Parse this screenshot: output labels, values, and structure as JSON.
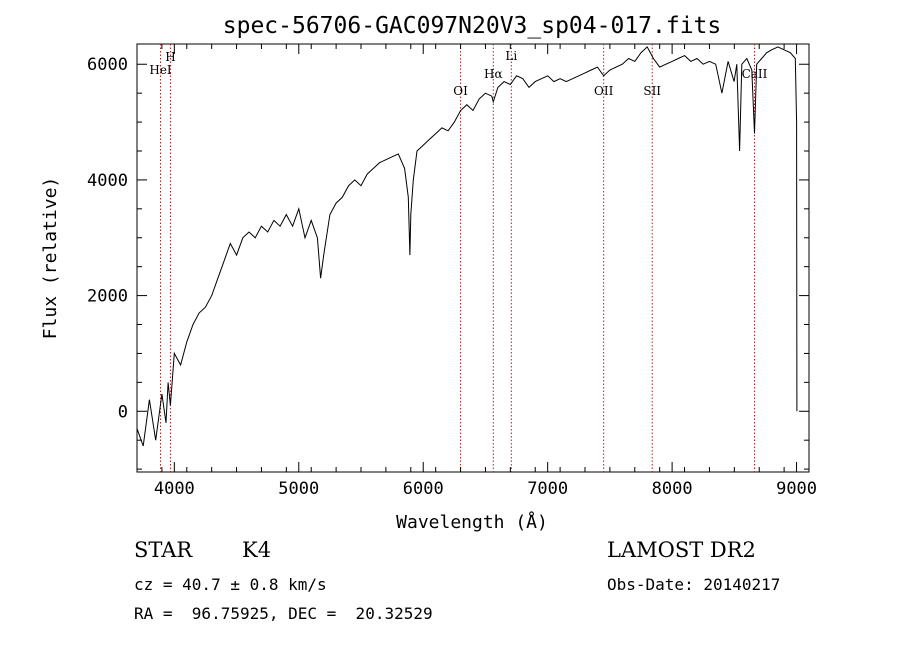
{
  "chart_data": {
    "type": "line",
    "title": "spec-56706-GAC097N20V3_sp04-017.fits",
    "xlabel": "Wavelength (Å)",
    "ylabel": "Flux (relative)",
    "xlim": [
      3700,
      9100
    ],
    "ylim": [
      -1050,
      6350
    ],
    "x_ticks": [
      4000,
      5000,
      6000,
      7000,
      8000,
      9000
    ],
    "x_tick_labels": [
      "4000",
      "5000",
      "6000",
      "7000",
      "8000",
      "9000"
    ],
    "y_ticks": [
      0,
      2000,
      4000,
      6000
    ],
    "y_tick_labels": [
      "0",
      "2000",
      "4000",
      "6000"
    ],
    "line_color": "#000000",
    "marker_color": "#b22222",
    "series": [
      {
        "name": "flux",
        "x": [
          3700,
          3750,
          3800,
          3850,
          3900,
          3933,
          3950,
          3968,
          4000,
          4050,
          4100,
          4150,
          4200,
          4250,
          4300,
          4350,
          4400,
          4450,
          4500,
          4550,
          4600,
          4650,
          4700,
          4750,
          4800,
          4850,
          4900,
          4950,
          5000,
          5050,
          5100,
          5150,
          5175,
          5200,
          5250,
          5300,
          5350,
          5400,
          5450,
          5500,
          5550,
          5600,
          5650,
          5700,
          5750,
          5800,
          5850,
          5880,
          5893,
          5900,
          5920,
          5950,
          6000,
          6050,
          6100,
          6150,
          6200,
          6250,
          6300,
          6350,
          6400,
          6450,
          6500,
          6550,
          6563,
          6600,
          6650,
          6700,
          6750,
          6800,
          6850,
          6900,
          6950,
          7000,
          7050,
          7100,
          7150,
          7200,
          7250,
          7300,
          7350,
          7400,
          7450,
          7500,
          7550,
          7600,
          7650,
          7700,
          7750,
          7800,
          7850,
          7900,
          7950,
          8000,
          8050,
          8100,
          8150,
          8200,
          8250,
          8300,
          8350,
          8400,
          8450,
          8498,
          8520,
          8542,
          8560,
          8600,
          8640,
          8662,
          8680,
          8720,
          8760,
          8800,
          8850,
          8900,
          8950,
          8990,
          9000,
          9003
        ],
        "y": [
          -300,
          -600,
          200,
          -500,
          300,
          -200,
          500,
          100,
          1000,
          800,
          1200,
          1500,
          1700,
          1800,
          2000,
          2300,
          2600,
          2900,
          2700,
          3000,
          3100,
          3000,
          3200,
          3100,
          3300,
          3200,
          3400,
          3200,
          3500,
          3000,
          3300,
          3000,
          2300,
          2700,
          3400,
          3600,
          3700,
          3900,
          4000,
          3900,
          4100,
          4200,
          4300,
          4350,
          4400,
          4450,
          4200,
          3700,
          2700,
          3400,
          4000,
          4500,
          4600,
          4700,
          4800,
          4900,
          4850,
          5000,
          5200,
          5300,
          5200,
          5400,
          5500,
          5450,
          5350,
          5600,
          5700,
          5650,
          5800,
          5750,
          5600,
          5700,
          5750,
          5800,
          5700,
          5750,
          5700,
          5750,
          5800,
          5850,
          5900,
          5950,
          5800,
          5900,
          5950,
          6000,
          6100,
          6050,
          6200,
          6300,
          6100,
          5950,
          6000,
          6050,
          6100,
          6150,
          6050,
          6100,
          6000,
          6050,
          6000,
          5500,
          6050,
          5700,
          6000,
          4500,
          6000,
          6100,
          5900,
          4800,
          6000,
          6100,
          6200,
          6250,
          6300,
          6250,
          6200,
          6100,
          5000,
          0
        ]
      }
    ],
    "line_markers": [
      {
        "label": "HeI",
        "x": 3889
      },
      {
        "label": "H",
        "x": 3969
      },
      {
        "label": "OI",
        "x": 6300
      },
      {
        "label": "Hα",
        "x": 6563
      },
      {
        "label": "Li",
        "x": 6708
      },
      {
        "label": "OII",
        "x": 7450
      },
      {
        "label": "SII",
        "x": 7840
      },
      {
        "label": "CaII",
        "x": 8662
      }
    ]
  },
  "info": {
    "object_class": "STAR",
    "subclass": "K4",
    "cz": "cz = 40.7 ± 0.8 km/s",
    "coords": "RA =  96.75925, DEC =  20.32529",
    "survey": "LAMOST DR2",
    "obs_date": "Obs-Date: 20140217"
  }
}
